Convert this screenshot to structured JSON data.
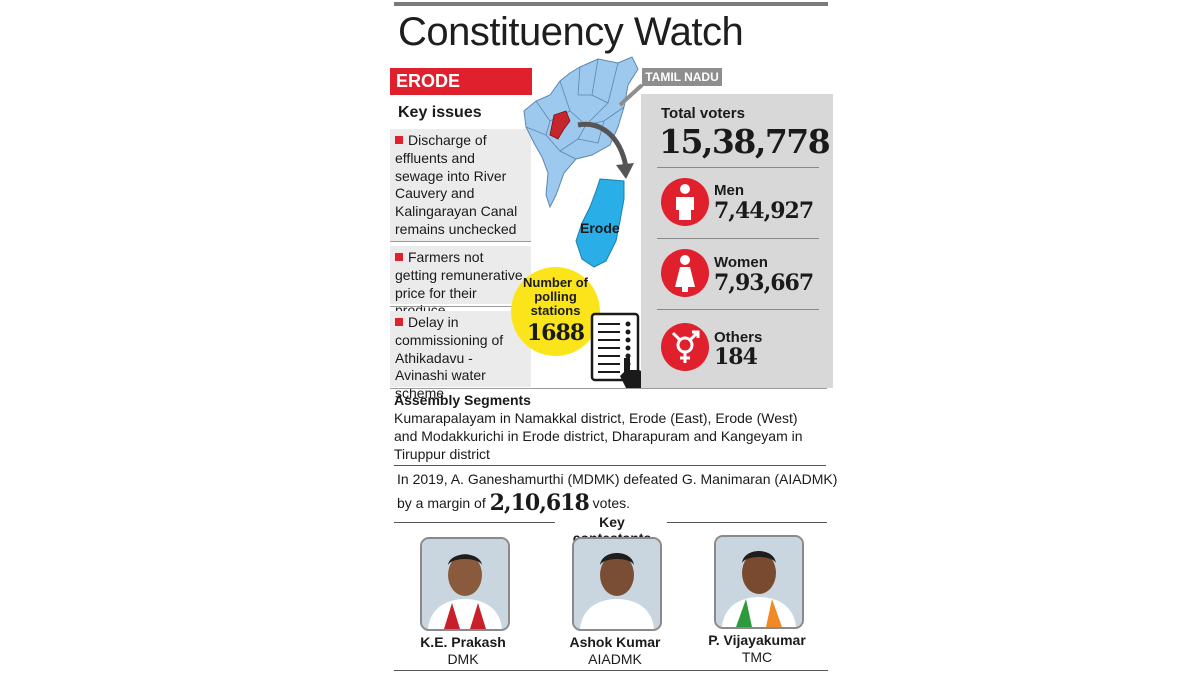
{
  "header": {
    "title": "Constituency Watch"
  },
  "constituency": {
    "name": "ERODE",
    "state_tag": "TAMIL NADU",
    "map_label": "Erode"
  },
  "key_issues": {
    "heading": "Key issues",
    "items": [
      "Discharge of effluents and sewage into River Cauvery and Kalingarayan Canal remains unchecked",
      "Farmers not getting remunerative price for their produce",
      "Delay in commissioning of Athikadavu - Avinashi water scheme"
    ]
  },
  "polling": {
    "label": "Number of polling stations",
    "value": "1688"
  },
  "voters": {
    "total_label": "Total voters",
    "total_value": "15,38,778",
    "men_label": "Men",
    "men_value": "7,44,927",
    "women_label": "Women",
    "women_value": "7,93,667",
    "others_label": "Others",
    "others_value": "184"
  },
  "segments": {
    "heading": "Assembly Segments",
    "text": "Kumarapalayam in Namakkal district, Erode (East), Erode (West) and Modakkurichi in Erode district, Dharapuram and Kangeyam in Tiruppur district"
  },
  "result": {
    "line1": "In 2019, A. Ganeshamurthi (MDMK) defeated G. Manimaran  (AIADMK)",
    "prefix": "by a margin of",
    "margin": "2,10,618",
    "suffix": "votes."
  },
  "contestants": {
    "heading": "Key contestants",
    "list": [
      {
        "name": "K.E. Prakash",
        "party": "DMK"
      },
      {
        "name": "Ashok Kumar",
        "party": "AIADMK"
      },
      {
        "name": "P. Vijayakumar",
        "party": "TMC"
      }
    ]
  },
  "colors": {
    "accent_red": "#e0202d",
    "map_blue": "#9ec9ee",
    "erode_blue": "#29aee8",
    "poll_yellow": "#fbe51a",
    "panel_grey": "#d8d8d8"
  },
  "icons": [
    "man-icon",
    "woman-icon",
    "gender-symbol-icon",
    "evm-icon",
    "pointing-hand-icon",
    "arrow-icon"
  ]
}
